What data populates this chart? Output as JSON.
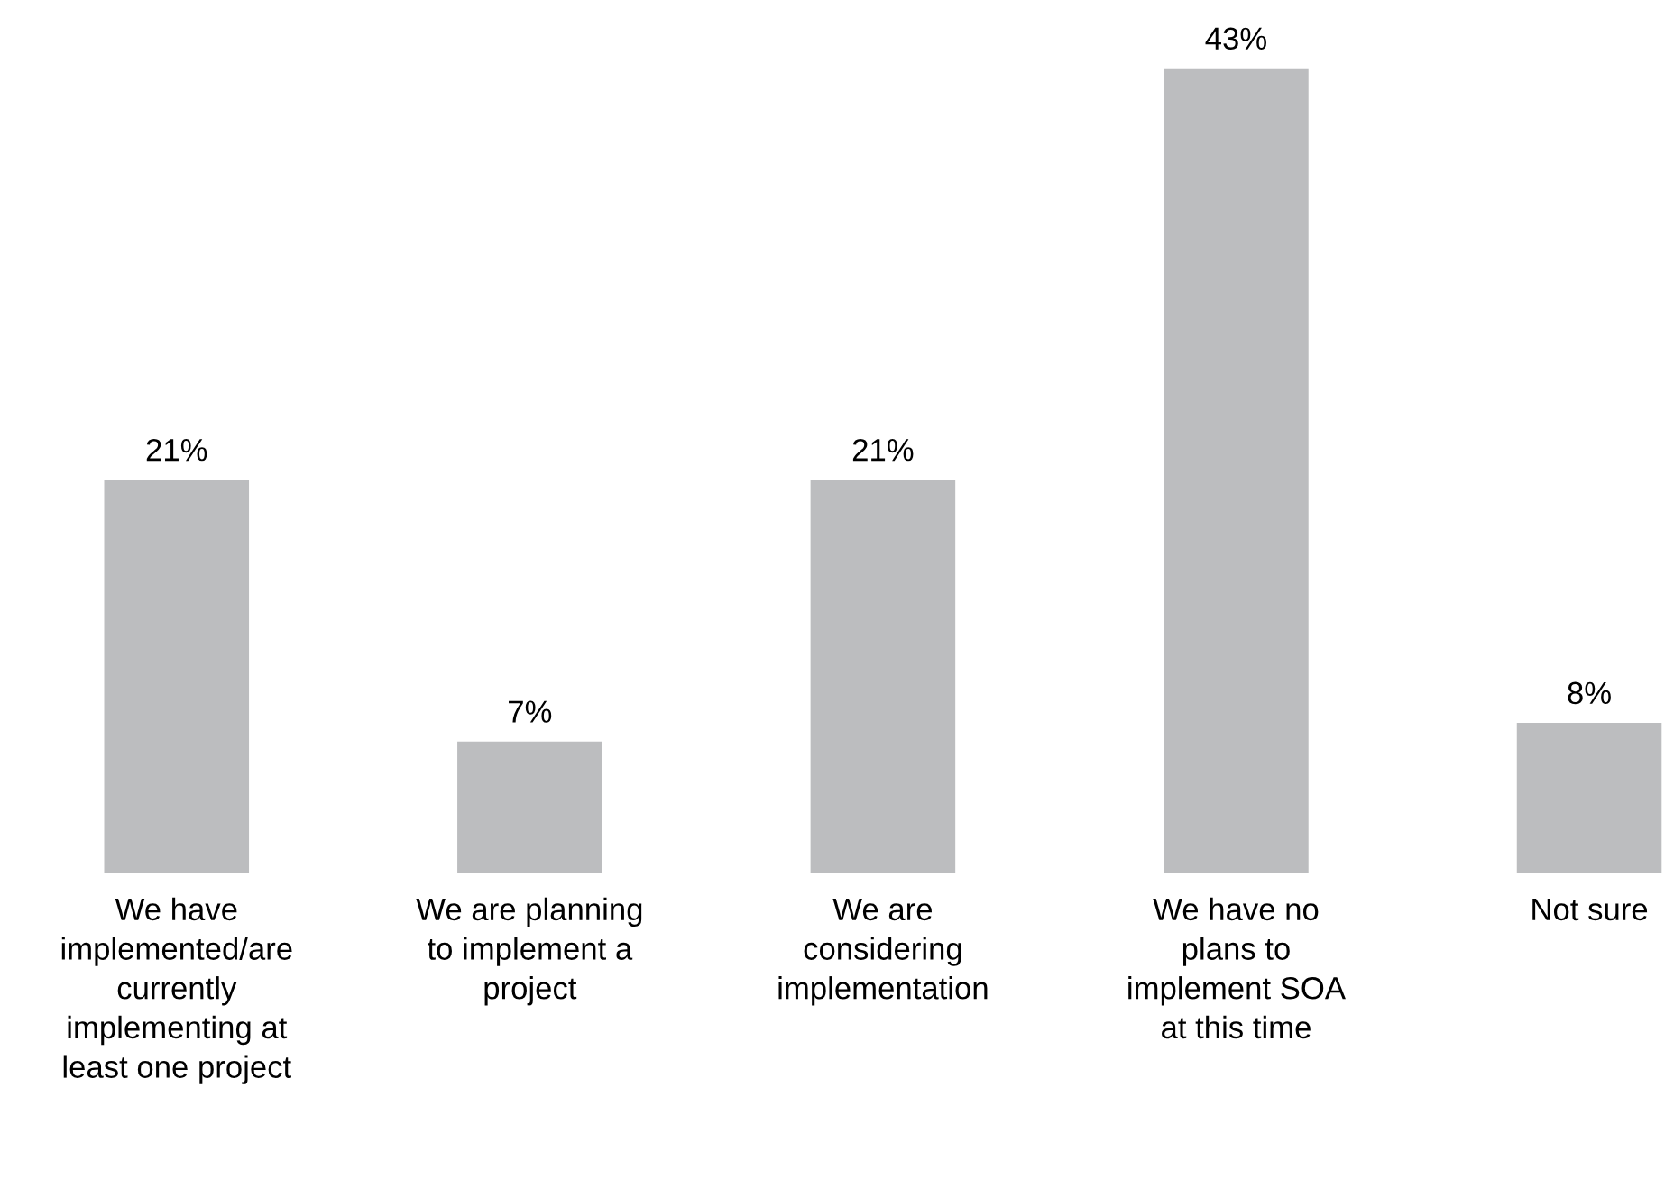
{
  "chart_data": {
    "type": "bar",
    "categories": [
      "We have\nimplemented/are\ncurrently\nimplementing at\nleast one project",
      "We are planning\nto implement a\nproject",
      "We are\nconsidering\nimplementation",
      "We have no\nplans to\nimplement SOA\nat this time",
      "Not sure"
    ],
    "values": [
      21,
      7,
      21,
      43,
      8
    ],
    "value_labels": [
      "21%",
      "7%",
      "21%",
      "43%",
      "8%"
    ],
    "color": "#bcbdbf",
    "grid": false,
    "legend": false
  }
}
